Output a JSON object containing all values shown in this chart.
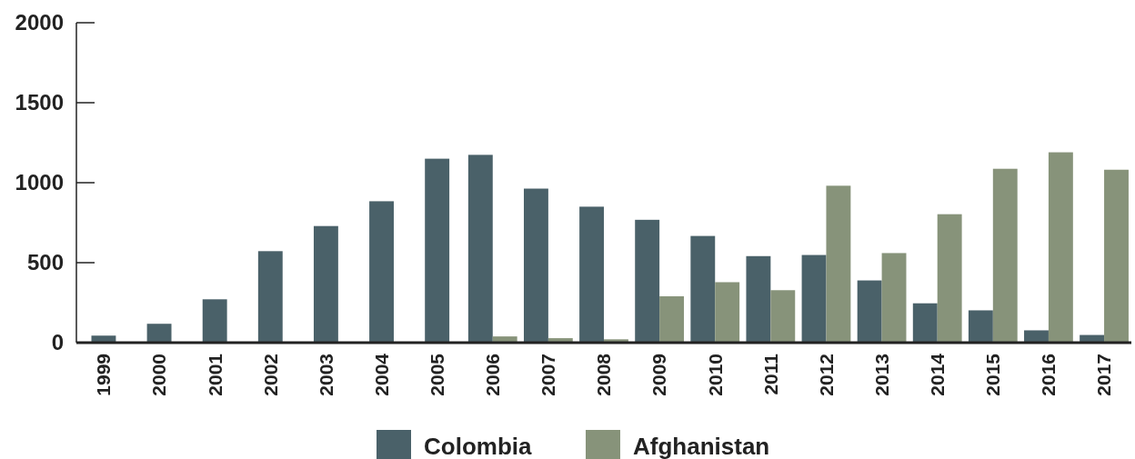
{
  "chart_data": {
    "type": "bar",
    "categories": [
      "1999",
      "2000",
      "2001",
      "2002",
      "2003",
      "2004",
      "2005",
      "2006",
      "2007",
      "2008",
      "2009",
      "2010",
      "2011",
      "2012",
      "2013",
      "2014",
      "2015",
      "2016",
      "2017"
    ],
    "series": [
      {
        "name": "Colombia",
        "color": "#4a6169",
        "values": [
          44,
          118,
          271,
          572,
          729,
          884,
          1150,
          1174,
          963,
          850,
          768,
          667,
          541,
          548,
          389,
          246,
          202,
          77,
          48
        ]
      },
      {
        "name": "Afghanistan",
        "color": "#87937a",
        "values": [
          null,
          null,
          null,
          null,
          null,
          null,
          null,
          39,
          28,
          21,
          290,
          378,
          328,
          981,
          560,
          803,
          1087,
          1190,
          1081
        ]
      }
    ],
    "ylim": [
      0,
      2000
    ],
    "yticks": [
      0,
      500,
      1000,
      1500,
      2000
    ],
    "legend": "bottom"
  }
}
